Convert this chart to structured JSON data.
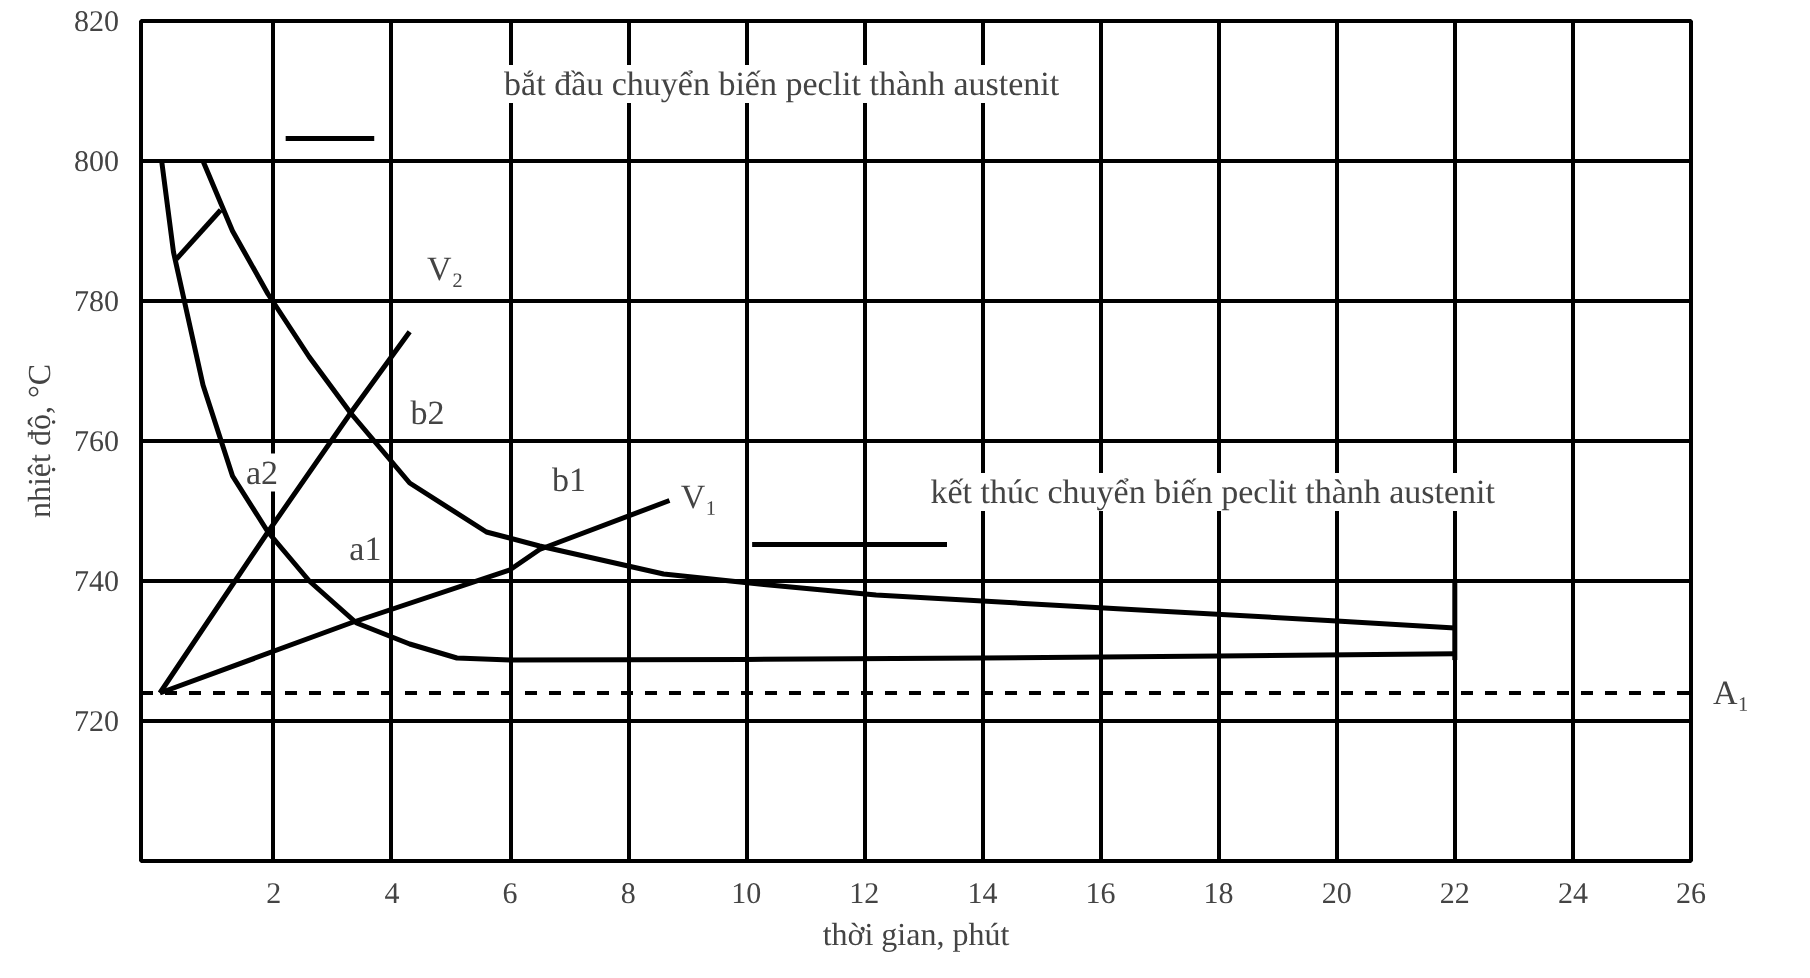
{
  "chart_data": {
    "type": "line",
    "xlabel": "thời gian, phút",
    "ylabel": "nhiệt độ, °C",
    "xlim": [
      -0.25,
      26
    ],
    "ylim": [
      700,
      820
    ],
    "xticks": [
      2,
      4,
      6,
      8,
      10,
      12,
      14,
      16,
      18,
      20,
      22,
      24,
      26
    ],
    "yticks": [
      720,
      740,
      760,
      780,
      800,
      820
    ],
    "grid": true,
    "line_style": "solid",
    "marker": "none",
    "series": [
      {
        "color": "#000000",
        "x": [
          0.1,
          0.3,
          0.8,
          1.3,
          1.9,
          2.6,
          3.4,
          4.3,
          5.1,
          6.0,
          10,
          14,
          18,
          22
        ],
        "values": [
          800,
          787,
          768,
          755,
          747,
          740,
          734,
          731,
          729,
          728.7,
          728.8,
          729,
          729.3,
          729.6
        ]
      },
      {
        "color": "#000000",
        "x": [
          0.8,
          1.3,
          1.9,
          2.6,
          3.3,
          4.3,
          5.6,
          6.5,
          8.6,
          10.3,
          12.2,
          14.7,
          17.2,
          20,
          22
        ],
        "values": [
          800,
          790,
          781,
          772,
          764,
          754,
          747,
          745,
          741,
          739.5,
          738,
          736.8,
          735.6,
          734.3,
          733.3
        ]
      },
      {
        "color": "#000000",
        "x": [
          0.07,
          1.9,
          3.3,
          4.3
        ],
        "values": [
          724,
          747,
          764,
          775.6
        ]
      },
      {
        "color": "#000000",
        "x": [
          0.07,
          3.3,
          6.0,
          6.5,
          8.7
        ],
        "values": [
          724,
          734,
          741.6,
          744.5,
          751.5
        ]
      },
      {
        "color": "#000000",
        "x": [
          0.35,
          1.1
        ],
        "values": [
          786,
          793
        ]
      },
      {
        "color": "#000000",
        "x": [
          22,
          22
        ],
        "values": [
          728.7,
          740
        ]
      },
      {
        "color": "#000000",
        "x": [
          2.2,
          3.7
        ],
        "values": [
          803.2,
          803.2
        ]
      },
      {
        "color": "#000000",
        "x": [
          10.1,
          13.4
        ],
        "values": [
          745.2,
          745.2
        ]
      }
    ],
    "ref_lines": [
      {
        "axis": "y",
        "value": 724,
        "label": "A₁",
        "color": "#000000",
        "line_style": "dashed"
      }
    ],
    "annotations": [
      "bắt đầu chuyển biến peclit thành austenit",
      "kết thúc chuyển biến peclit thành austenit",
      "V₂",
      "V₁",
      "a2",
      "b2",
      "a1",
      "b1"
    ]
  }
}
